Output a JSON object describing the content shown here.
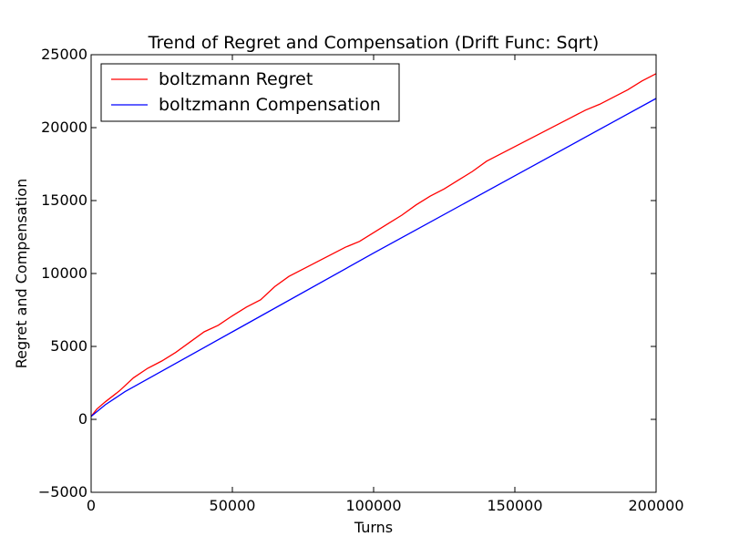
{
  "chart_data": {
    "type": "line",
    "title": "Trend of Regret and Compensation (Drift Func: Sqrt)",
    "xlabel": "Turns",
    "ylabel": "Regret and Compensation",
    "xlim": [
      0,
      200000
    ],
    "ylim": [
      -5000,
      25000
    ],
    "xticks": [
      0,
      50000,
      100000,
      150000,
      200000
    ],
    "yticks": [
      -5000,
      0,
      5000,
      10000,
      15000,
      20000,
      25000
    ],
    "xtick_labels": [
      "0",
      "50000",
      "100000",
      "150000",
      "200000"
    ],
    "ytick_labels": [
      "−5000",
      "0",
      "5000",
      "10000",
      "15000",
      "20000",
      "25000"
    ],
    "grid": false,
    "legend_position": "top-left",
    "series": [
      {
        "name": "boltzmann Regret",
        "color": "#ff0000",
        "x": [
          0,
          2000,
          5000,
          10000,
          15000,
          20000,
          25000,
          30000,
          35000,
          40000,
          45000,
          50000,
          55000,
          60000,
          65000,
          70000,
          75000,
          80000,
          85000,
          90000,
          95000,
          100000,
          105000,
          110000,
          115000,
          120000,
          125000,
          130000,
          135000,
          140000,
          145000,
          150000,
          155000,
          160000,
          165000,
          170000,
          175000,
          180000,
          185000,
          190000,
          195000,
          200000
        ],
        "values": [
          200,
          700,
          1200,
          1950,
          2850,
          3500,
          4000,
          4600,
          5300,
          6000,
          6450,
          7100,
          7700,
          8200,
          9100,
          9800,
          10300,
          10800,
          11300,
          11800,
          12200,
          12800,
          13400,
          14000,
          14700,
          15300,
          15800,
          16400,
          17000,
          17700,
          18200,
          18700,
          19200,
          19700,
          20200,
          20700,
          21200,
          21600,
          22100,
          22600,
          23200,
          23700
        ]
      },
      {
        "name": "boltzmann Compensation",
        "color": "#0000ff",
        "x": [
          0,
          5000,
          12000,
          50000,
          100000,
          150000,
          200000
        ],
        "values": [
          200,
          1000,
          1900,
          6000,
          11400,
          16700,
          22000
        ]
      }
    ]
  }
}
